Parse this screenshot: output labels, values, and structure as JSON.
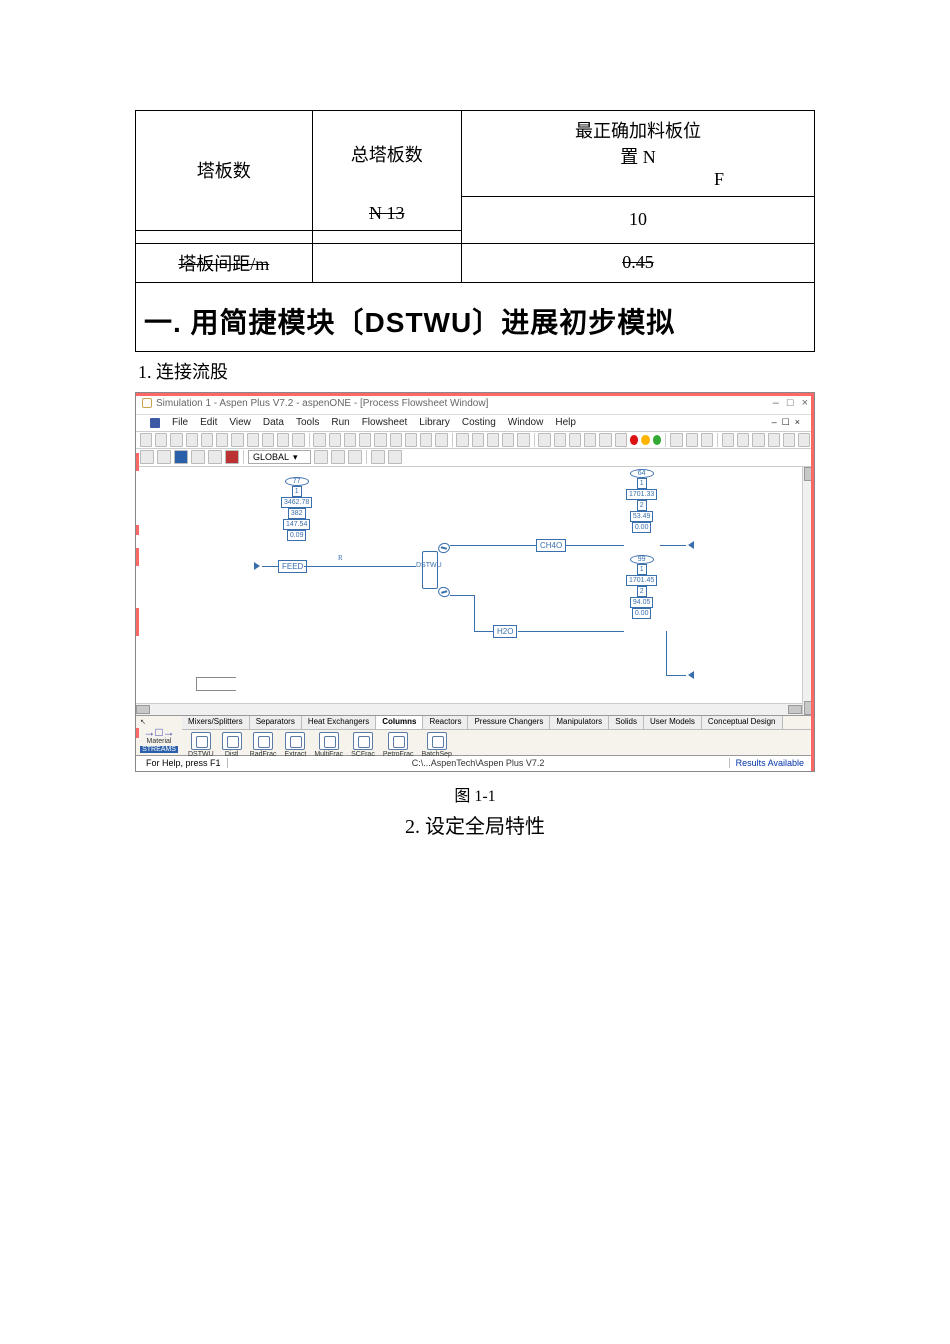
{
  "table": {
    "r1c1": "塔板数",
    "r1c2": "总塔板数",
    "r1c2b": "N 13",
    "r1c3a": "最正确加料板位",
    "r1c3b": "置 N",
    "r1c3f": "F",
    "r2c3": "10",
    "r3c1": "塔板间距/m",
    "r3c3": "0.45"
  },
  "heading1": "一. 用简捷模块〔DSTWU〕进展初步模拟",
  "step1": "1. 连接流股",
  "app": {
    "title": "Simulation 1 - Aspen Plus V7.2 - aspenONE - [Process Flowsheet Window]",
    "window_btn_min": "–",
    "window_btn_max": "□",
    "window_btn_close": "×",
    "menus": [
      "File",
      "Edit",
      "View",
      "Data",
      "Tools",
      "Run",
      "Flowsheet",
      "Library",
      "Costing",
      "Window",
      "Help"
    ],
    "toolbar_icons_count": 30,
    "status_dots": [
      "#d11",
      "#ffb400",
      "#3a3"
    ],
    "toolbar2_combo": "GLOBAL",
    "status_left": "For Help, press F1",
    "status_center": "C:\\...AspenTech\\Aspen Plus V7.2",
    "status_right": "Results Available"
  },
  "flowsheet": {
    "feed": {
      "lbl": "FEED",
      "cluster": [
        "77",
        "1",
        "3462.78",
        "382",
        "147.54",
        "0.09"
      ]
    },
    "ch4o": {
      "lbl": "CH4O",
      "cluster": [
        "64",
        "1",
        "1701.33",
        "2",
        "53.49",
        "0.00"
      ]
    },
    "h2o": {
      "lbl": "H2O",
      "cluster": [
        "99",
        "1",
        "1701.45",
        "2",
        "94.05",
        "0.00"
      ]
    },
    "unit_lbl": "DSTWU"
  },
  "palette": {
    "left1": "Material",
    "left2": "STREAMS",
    "tabs": [
      "Mixers/Splitters",
      "Separators",
      "Heat Exchangers",
      "Columns",
      "Reactors",
      "Pressure Changers",
      "Manipulators",
      "Solids",
      "User Models",
      "Conceptual Design"
    ],
    "active_tab": "Columns",
    "units": [
      "DSTWU",
      "Distl",
      "RadFrac",
      "Extract",
      "MultiFrac",
      "SCFrac",
      "PetroFrac",
      "BatchSep"
    ]
  },
  "fig_caption": "图 1-1",
  "step2": "2.  设定全局特性"
}
